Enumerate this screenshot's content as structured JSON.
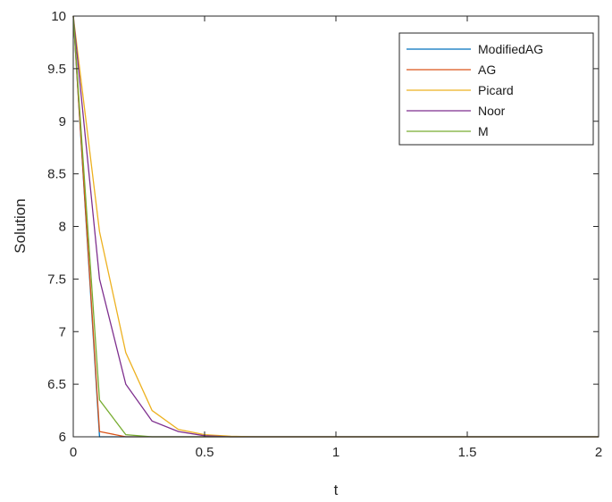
{
  "chart_data": {
    "type": "line",
    "title": "",
    "xlabel": "t",
    "ylabel": "Solution",
    "xlim": [
      0,
      2
    ],
    "ylim": [
      6,
      10
    ],
    "xticks": [
      "0",
      "0.5",
      "1",
      "1.5",
      "2"
    ],
    "yticks": [
      "6",
      "6.5",
      "7",
      "7.5",
      "8",
      "8.5",
      "9",
      "9.5",
      "10"
    ],
    "grid": false,
    "legend_position": "top-right",
    "x": [
      0,
      0.1,
      0.2,
      0.3,
      0.4,
      0.5,
      0.6,
      0.7,
      0.8,
      0.9,
      1.0,
      1.1,
      1.2,
      1.3,
      1.4,
      1.5,
      1.6,
      1.7,
      1.8,
      1.9,
      2.0
    ],
    "series": [
      {
        "name": "ModifiedAG",
        "color": "#0072BD",
        "values": [
          10,
          6,
          6,
          6,
          6,
          6,
          6,
          6,
          6,
          6,
          6,
          6,
          6,
          6,
          6,
          6,
          6,
          6,
          6,
          6,
          6
        ]
      },
      {
        "name": "AG",
        "color": "#D95319",
        "values": [
          10,
          6.05,
          6.0,
          6.0,
          6,
          6,
          6,
          6,
          6,
          6,
          6,
          6,
          6,
          6,
          6,
          6,
          6,
          6,
          6,
          6,
          6
        ]
      },
      {
        "name": "Picard",
        "color": "#EDB120",
        "values": [
          10,
          7.95,
          6.8,
          6.25,
          6.07,
          6.02,
          6.005,
          6.0,
          6,
          6,
          6,
          6,
          6,
          6,
          6,
          6,
          6,
          6,
          6,
          6,
          6
        ]
      },
      {
        "name": "Noor",
        "color": "#7E2F8E",
        "values": [
          10,
          7.5,
          6.5,
          6.15,
          6.05,
          6.01,
          6.0,
          6.0,
          6,
          6,
          6,
          6,
          6,
          6,
          6,
          6,
          6,
          6,
          6,
          6,
          6
        ]
      },
      {
        "name": "M",
        "color": "#77AC30",
        "values": [
          10,
          6.35,
          6.02,
          6.0,
          6,
          6,
          6,
          6,
          6,
          6,
          6,
          6,
          6,
          6,
          6,
          6,
          6,
          6,
          6,
          6,
          6
        ]
      }
    ]
  }
}
